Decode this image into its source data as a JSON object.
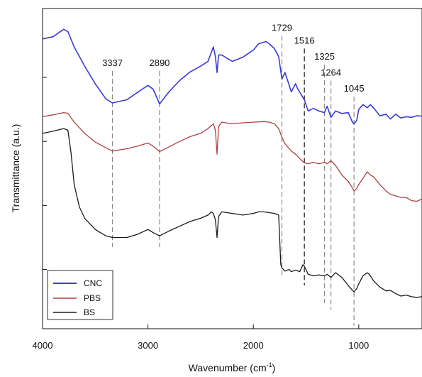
{
  "chart_data": {
    "type": "line",
    "xlabel": "Wavenumber (cm",
    "xlabel_sup": "-1",
    "xlabel_tail": ")",
    "ylabel": "Transmittance (a.u.)",
    "xlim": [
      4000,
      400
    ],
    "x_reversed": true,
    "ylim": [
      0,
      1
    ],
    "y_tick_labels": false,
    "x_ticks": [
      4000,
      3000,
      2000,
      1000
    ],
    "x_tick_labels": [
      "4000",
      "3000",
      "2000",
      "1000"
    ],
    "y_ticks": [
      0.185,
      0.385,
      0.585,
      0.785
    ],
    "grid": false,
    "legend_position": "bottom-left",
    "series": [
      {
        "name": "CNC",
        "color": "#3a3ad6",
        "points": [
          [
            4000,
            0.905
          ],
          [
            3900,
            0.912
          ],
          [
            3800,
            0.935
          ],
          [
            3760,
            0.928
          ],
          [
            3700,
            0.88
          ],
          [
            3600,
            0.82
          ],
          [
            3500,
            0.765
          ],
          [
            3400,
            0.718
          ],
          [
            3337,
            0.705
          ],
          [
            3200,
            0.715
          ],
          [
            3100,
            0.738
          ],
          [
            3000,
            0.76
          ],
          [
            2950,
            0.748
          ],
          [
            2890,
            0.702
          ],
          [
            2800,
            0.74
          ],
          [
            2700,
            0.775
          ],
          [
            2600,
            0.802
          ],
          [
            2500,
            0.82
          ],
          [
            2430,
            0.835
          ],
          [
            2380,
            0.88
          ],
          [
            2360,
            0.85
          ],
          [
            2345,
            0.8
          ],
          [
            2330,
            0.855
          ],
          [
            2300,
            0.855
          ],
          [
            2200,
            0.835
          ],
          [
            2100,
            0.848
          ],
          [
            2000,
            0.87
          ],
          [
            1950,
            0.89
          ],
          [
            1900,
            0.895
          ],
          [
            1880,
            0.897
          ],
          [
            1850,
            0.89
          ],
          [
            1800,
            0.875
          ],
          [
            1760,
            0.85
          ],
          [
            1729,
            0.78
          ],
          [
            1700,
            0.8
          ],
          [
            1660,
            0.76
          ],
          [
            1640,
            0.74
          ],
          [
            1600,
            0.765
          ],
          [
            1580,
            0.75
          ],
          [
            1516,
            0.715
          ],
          [
            1480,
            0.68
          ],
          [
            1430,
            0.688
          ],
          [
            1380,
            0.68
          ],
          [
            1325,
            0.675
          ],
          [
            1300,
            0.695
          ],
          [
            1264,
            0.66
          ],
          [
            1220,
            0.68
          ],
          [
            1160,
            0.672
          ],
          [
            1100,
            0.675
          ],
          [
            1060,
            0.645
          ],
          [
            1045,
            0.64
          ],
          [
            1020,
            0.65
          ],
          [
            1000,
            0.685
          ],
          [
            960,
            0.7
          ],
          [
            920,
            0.69
          ],
          [
            890,
            0.7
          ],
          [
            860,
            0.69
          ],
          [
            800,
            0.665
          ],
          [
            740,
            0.67
          ],
          [
            700,
            0.655
          ],
          [
            650,
            0.67
          ],
          [
            600,
            0.658
          ],
          [
            550,
            0.662
          ],
          [
            500,
            0.66
          ],
          [
            450,
            0.665
          ],
          [
            400,
            0.664
          ]
        ]
      },
      {
        "name": "PBS",
        "color": "#b04040",
        "points": [
          [
            4000,
            0.662
          ],
          [
            3900,
            0.668
          ],
          [
            3800,
            0.675
          ],
          [
            3760,
            0.673
          ],
          [
            3700,
            0.645
          ],
          [
            3600,
            0.61
          ],
          [
            3500,
            0.583
          ],
          [
            3400,
            0.565
          ],
          [
            3337,
            0.555
          ],
          [
            3200,
            0.562
          ],
          [
            3100,
            0.57
          ],
          [
            3000,
            0.58
          ],
          [
            2950,
            0.57
          ],
          [
            2890,
            0.553
          ],
          [
            2800,
            0.568
          ],
          [
            2700,
            0.585
          ],
          [
            2600,
            0.6
          ],
          [
            2500,
            0.61
          ],
          [
            2430,
            0.625
          ],
          [
            2380,
            0.64
          ],
          [
            2360,
            0.62
          ],
          [
            2345,
            0.545
          ],
          [
            2330,
            0.632
          ],
          [
            2300,
            0.645
          ],
          [
            2200,
            0.64
          ],
          [
            2100,
            0.643
          ],
          [
            2000,
            0.645
          ],
          [
            1900,
            0.647
          ],
          [
            1850,
            0.645
          ],
          [
            1800,
            0.64
          ],
          [
            1760,
            0.625
          ],
          [
            1729,
            0.598
          ],
          [
            1700,
            0.578
          ],
          [
            1660,
            0.562
          ],
          [
            1640,
            0.555
          ],
          [
            1600,
            0.545
          ],
          [
            1550,
            0.528
          ],
          [
            1516,
            0.518
          ],
          [
            1480,
            0.515
          ],
          [
            1430,
            0.52
          ],
          [
            1380,
            0.515
          ],
          [
            1325,
            0.52
          ],
          [
            1300,
            0.515
          ],
          [
            1264,
            0.525
          ],
          [
            1220,
            0.51
          ],
          [
            1160,
            0.48
          ],
          [
            1100,
            0.46
          ],
          [
            1060,
            0.44
          ],
          [
            1045,
            0.43
          ],
          [
            1020,
            0.438
          ],
          [
            1000,
            0.45
          ],
          [
            960,
            0.47
          ],
          [
            920,
            0.49
          ],
          [
            890,
            0.48
          ],
          [
            860,
            0.475
          ],
          [
            800,
            0.45
          ],
          [
            740,
            0.43
          ],
          [
            700,
            0.42
          ],
          [
            650,
            0.415
          ],
          [
            600,
            0.41
          ],
          [
            550,
            0.41
          ],
          [
            500,
            0.4
          ],
          [
            450,
            0.398
          ],
          [
            400,
            0.405
          ]
        ]
      },
      {
        "name": "BS",
        "color": "#1a1a1a",
        "points": [
          [
            4000,
            0.61
          ],
          [
            3900,
            0.617
          ],
          [
            3800,
            0.625
          ],
          [
            3760,
            0.62
          ],
          [
            3730,
            0.55
          ],
          [
            3700,
            0.45
          ],
          [
            3650,
            0.38
          ],
          [
            3600,
            0.345
          ],
          [
            3500,
            0.31
          ],
          [
            3400,
            0.29
          ],
          [
            3337,
            0.285
          ],
          [
            3200,
            0.285
          ],
          [
            3100,
            0.295
          ],
          [
            3000,
            0.31
          ],
          [
            2950,
            0.3
          ],
          [
            2890,
            0.29
          ],
          [
            2800,
            0.305
          ],
          [
            2700,
            0.32
          ],
          [
            2600,
            0.335
          ],
          [
            2500,
            0.345
          ],
          [
            2430,
            0.355
          ],
          [
            2400,
            0.365
          ],
          [
            2380,
            0.36
          ],
          [
            2360,
            0.34
          ],
          [
            2345,
            0.285
          ],
          [
            2330,
            0.35
          ],
          [
            2300,
            0.365
          ],
          [
            2200,
            0.36
          ],
          [
            2100,
            0.355
          ],
          [
            2000,
            0.36
          ],
          [
            1950,
            0.365
          ],
          [
            1900,
            0.365
          ],
          [
            1800,
            0.36
          ],
          [
            1760,
            0.355
          ],
          [
            1740,
            0.2
          ],
          [
            1729,
            0.19
          ],
          [
            1700,
            0.18
          ],
          [
            1660,
            0.185
          ],
          [
            1640,
            0.178
          ],
          [
            1600,
            0.183
          ],
          [
            1560,
            0.178
          ],
          [
            1530,
            0.2
          ],
          [
            1516,
            0.195
          ],
          [
            1480,
            0.17
          ],
          [
            1430,
            0.165
          ],
          [
            1380,
            0.168
          ],
          [
            1325,
            0.165
          ],
          [
            1300,
            0.17
          ],
          [
            1264,
            0.16
          ],
          [
            1220,
            0.175
          ],
          [
            1160,
            0.16
          ],
          [
            1100,
            0.135
          ],
          [
            1060,
            0.12
          ],
          [
            1045,
            0.115
          ],
          [
            1020,
            0.125
          ],
          [
            1000,
            0.14
          ],
          [
            960,
            0.165
          ],
          [
            920,
            0.175
          ],
          [
            900,
            0.17
          ],
          [
            860,
            0.15
          ],
          [
            800,
            0.13
          ],
          [
            740,
            0.118
          ],
          [
            700,
            0.12
          ],
          [
            650,
            0.11
          ],
          [
            600,
            0.102
          ],
          [
            550,
            0.105
          ],
          [
            500,
            0.1
          ],
          [
            450,
            0.098
          ],
          [
            400,
            0.1
          ]
        ]
      }
    ],
    "annotations": [
      {
        "label": "3337",
        "x": 3337,
        "line_top": 0.805,
        "line_bottom": 0.255,
        "style": "gray-dashed"
      },
      {
        "label": "2890",
        "x": 2890,
        "line_top": 0.805,
        "line_bottom": 0.255,
        "style": "gray-dashed"
      },
      {
        "label": "1729",
        "x": 1729,
        "line_top": 0.915,
        "line_bottom": 0.158,
        "style": "gray-dashed"
      },
      {
        "label": "1516",
        "x": 1516,
        "line_top": 0.875,
        "line_bottom": 0.135,
        "style": "black-dashed"
      },
      {
        "label": "1325",
        "x": 1325,
        "line_top": 0.825,
        "line_bottom": 0.08,
        "style": "gray-dashed"
      },
      {
        "label": "1264",
        "x": 1264,
        "line_top": 0.775,
        "line_bottom": 0.06,
        "style": "gray-dashed"
      },
      {
        "label": "1045",
        "x": 1045,
        "line_top": 0.725,
        "line_bottom": 0.01,
        "style": "gray-dashed"
      }
    ]
  }
}
